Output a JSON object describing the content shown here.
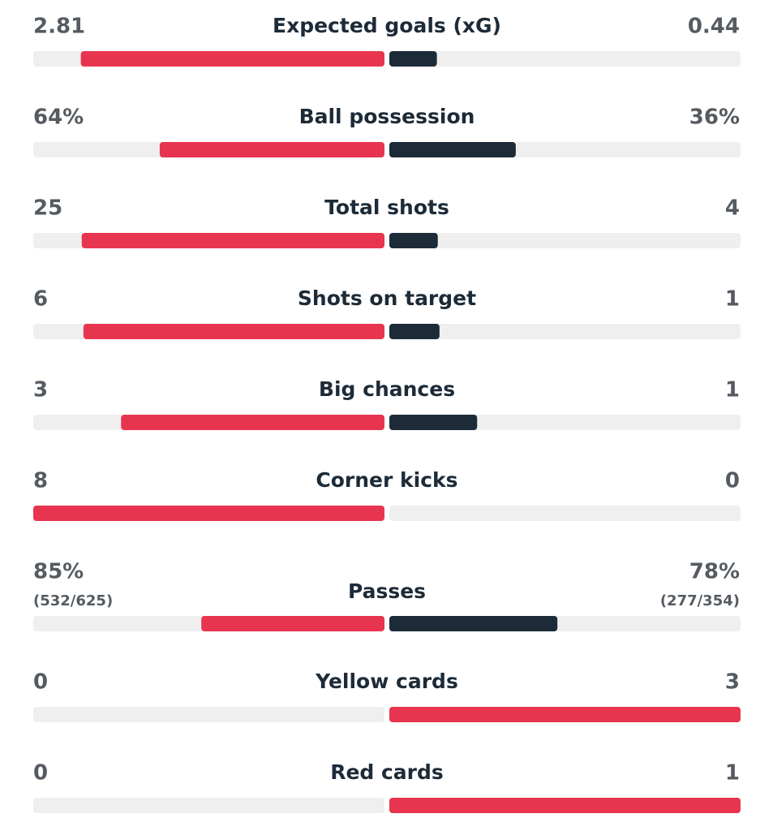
{
  "stats": [
    {
      "label": "Expected goals (xG)",
      "home": 2.81,
      "away": 0.44
    },
    {
      "label": "Ball possession",
      "home": {
        "value": 64,
        "label": "64%"
      },
      "away": {
        "value": 36,
        "label": "36%"
      }
    },
    {
      "label": "Total shots",
      "home": 25,
      "away": 4
    },
    {
      "label": "Shots on target",
      "home": 6,
      "away": 1
    },
    {
      "label": "Big chances",
      "home": 3,
      "away": 1
    },
    {
      "label": "Corner kicks",
      "home": 8,
      "away": 0
    },
    {
      "label": "Passes",
      "home": {
        "value": 85,
        "label": "85%"
      },
      "away": {
        "value": 78,
        "label": "78%"
      },
      "home_detail": "(532/625)",
      "away_detail": "(277/354)"
    },
    {
      "label": "Yellow cards",
      "home": 0,
      "away": 3
    },
    {
      "label": "Red cards",
      "home": 0,
      "away": 1
    }
  ]
}
